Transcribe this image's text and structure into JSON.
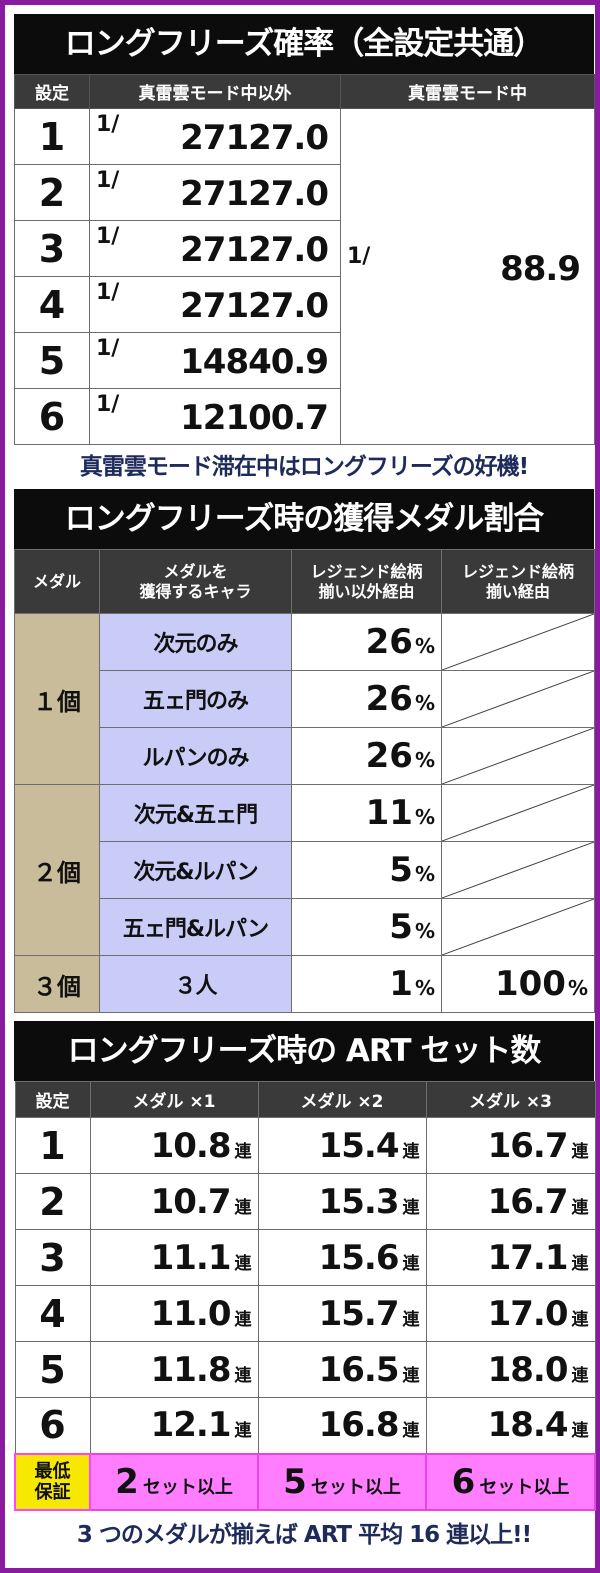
{
  "section1": {
    "title": "ロングフリーズ確率（全設定共通）",
    "headers": [
      "設定",
      "真雷雲モード中以外",
      "真雷雲モード中"
    ],
    "rows": [
      {
        "setting": "1",
        "frac": "1/",
        "value": "27127.0"
      },
      {
        "setting": "2",
        "frac": "1/",
        "value": "27127.0"
      },
      {
        "setting": "3",
        "frac": "1/",
        "value": "27127.0"
      },
      {
        "setting": "4",
        "frac": "1/",
        "value": "27127.0"
      },
      {
        "setting": "5",
        "frac": "1/",
        "value": "14840.9"
      },
      {
        "setting": "6",
        "frac": "1/",
        "value": "12100.7"
      }
    ],
    "merged": {
      "frac": "1/",
      "value": "88.9"
    },
    "note": "真雷雲モード滞在中はロングフリーズの好機!"
  },
  "section2": {
    "title": "ロングフリーズ時の獲得メダル割合",
    "headers": [
      "メダル",
      "メダルを\n獲得するキャラ",
      "レジェンド絵柄\n揃い以外経由",
      "レジェンド絵柄\n揃い経由"
    ],
    "groups": [
      {
        "medal": "１個",
        "rows": [
          {
            "chara": "次元のみ",
            "pct": "26",
            "pct2": ""
          },
          {
            "chara": "五ェ門のみ",
            "pct": "26",
            "pct2": ""
          },
          {
            "chara": "ルパンのみ",
            "pct": "26",
            "pct2": ""
          }
        ]
      },
      {
        "medal": "２個",
        "rows": [
          {
            "chara": "次元&五ェ門",
            "pct": "11",
            "pct2": ""
          },
          {
            "chara": "次元&ルパン",
            "pct": "5",
            "pct2": ""
          },
          {
            "chara": "五ェ門&ルパン",
            "pct": "5",
            "pct2": ""
          }
        ]
      },
      {
        "medal": "３個",
        "rows": [
          {
            "chara": "３人",
            "pct": "1",
            "pct2": "100"
          }
        ]
      }
    ],
    "unit": "%"
  },
  "section3": {
    "title": "ロングフリーズ時の ART セット数",
    "headers": [
      "設定",
      "メダル ×1",
      "メダル ×2",
      "メダル ×3"
    ],
    "unit": "連",
    "rows": [
      {
        "setting": "1",
        "v": [
          "10.8",
          "15.4",
          "16.7"
        ]
      },
      {
        "setting": "2",
        "v": [
          "10.7",
          "15.3",
          "16.7"
        ]
      },
      {
        "setting": "3",
        "v": [
          "11.1",
          "15.6",
          "17.1"
        ]
      },
      {
        "setting": "4",
        "v": [
          "11.0",
          "15.7",
          "17.0"
        ]
      },
      {
        "setting": "5",
        "v": [
          "11.8",
          "16.5",
          "18.0"
        ]
      },
      {
        "setting": "6",
        "v": [
          "12.1",
          "16.8",
          "18.4"
        ]
      }
    ],
    "guarantee_label_1": "最低",
    "guarantee_label_2": "保証",
    "guarantee": [
      "2",
      "5",
      "6"
    ],
    "guarantee_unit": "セット以上",
    "footer": "3 つのメダルが揃えば ART 平均 16 連以上!!"
  },
  "colors": {
    "frame": "#8a1aa0",
    "title_bg": "#0c0c0c",
    "header_bg": "#3a3a3a",
    "medal_bg": "#c9bc9a",
    "chara_bg": "#c9ccf6",
    "guarantee_label_bg": "#f6e800",
    "guarantee_bg": "#ff7dff",
    "note_text": "#1e2a5a"
  }
}
